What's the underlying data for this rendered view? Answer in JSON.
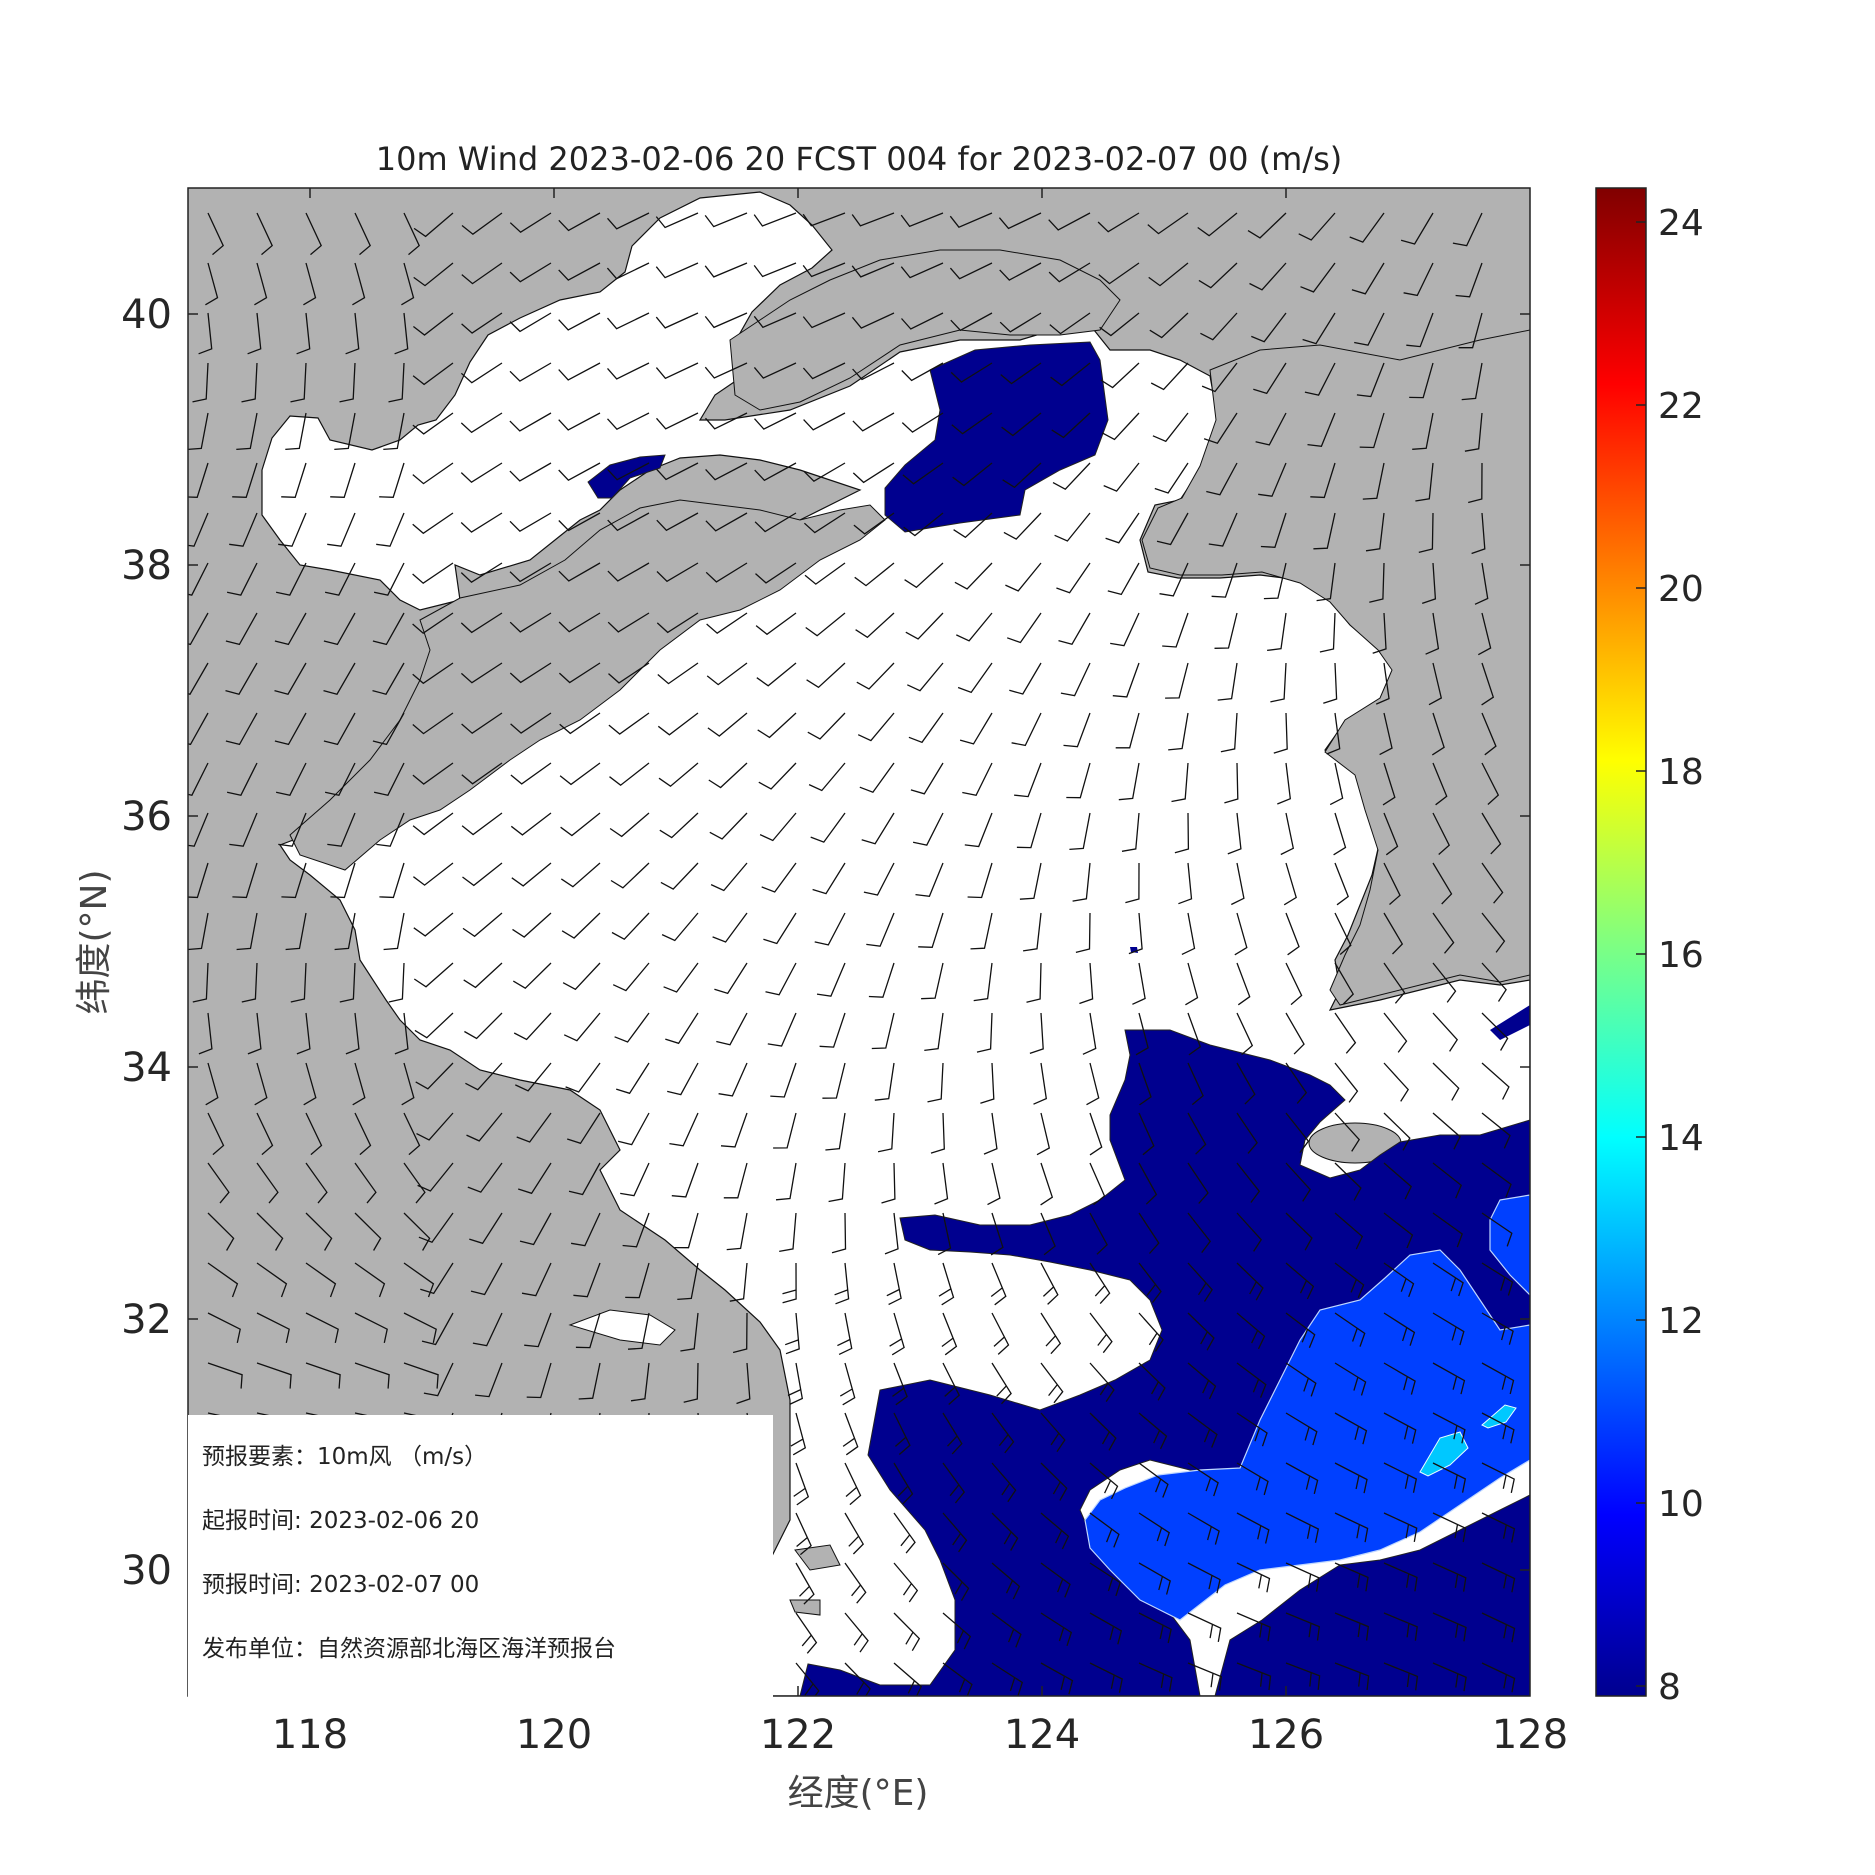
{
  "title": "10m Wind 2023-02-06 20 FCST 004 for 2023-02-07 00 (m/s)",
  "axes": {
    "xlabel": "经度(°E)",
    "ylabel": "纬度(°N)",
    "x_ticks": [
      "118",
      "120",
      "122",
      "124",
      "126",
      "128"
    ],
    "y_ticks": [
      "30",
      "32",
      "34",
      "36",
      "38",
      "40"
    ],
    "xlim": [
      117,
      128
    ],
    "ylim": [
      29,
      41
    ]
  },
  "colorbar": {
    "ticks": [
      "8",
      "10",
      "12",
      "14",
      "16",
      "18",
      "20",
      "22",
      "24"
    ],
    "range": [
      8,
      24.5
    ],
    "colormap": "jet"
  },
  "legend": {
    "element_label": "预报要素：",
    "element_value": "10m风 （m/s）",
    "issue_label": "起报时间: ",
    "issue_value": "2023-02-06 20",
    "valid_label": "预报时间: ",
    "valid_value": "2023-02-07 00",
    "agency_label": "发布单位：",
    "agency_value": "自然资源部北海区海洋预报台"
  },
  "colors": {
    "land": "#b2b2b2",
    "sea": "#ffffff",
    "level_8_10": "#00008f",
    "level_10_12": "#0040ff",
    "level_12_14": "#00c8ff",
    "level_14_plus": "#40ffd0"
  }
}
